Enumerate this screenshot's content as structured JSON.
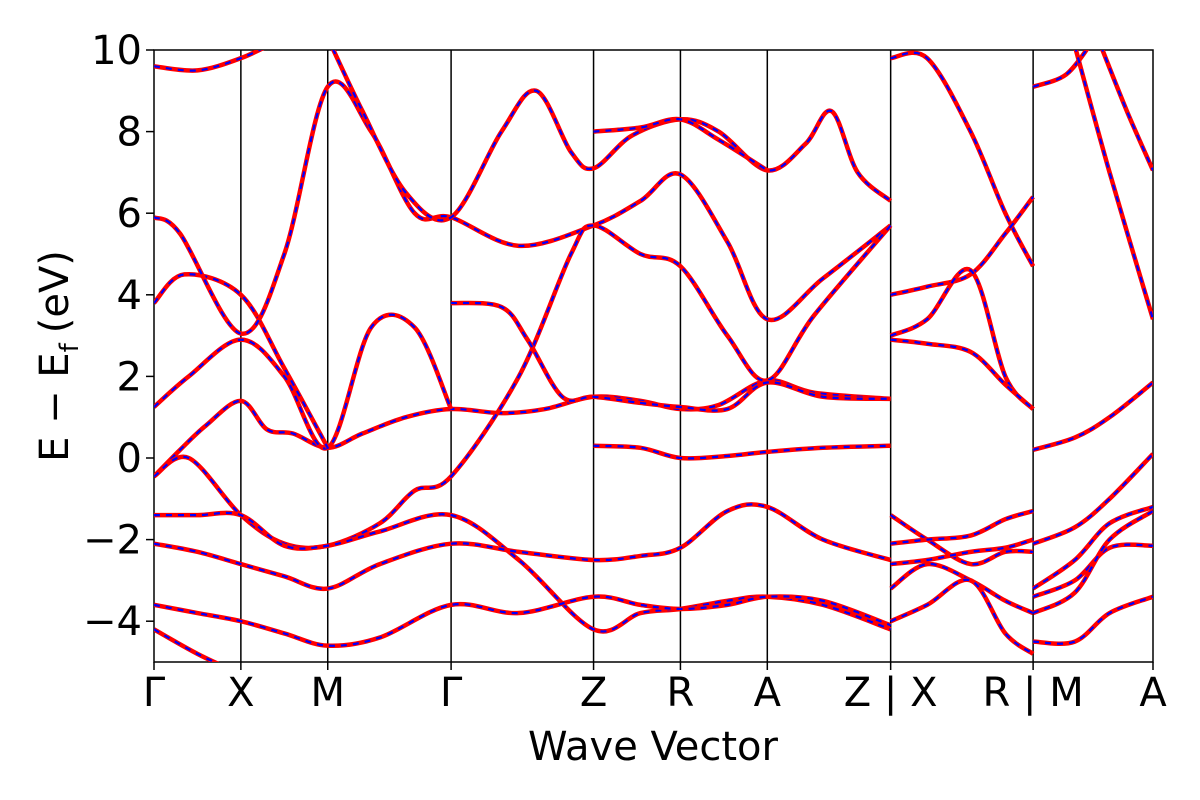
{
  "chart_data": {
    "type": "line",
    "title": "",
    "xlabel": "Wave Vector",
    "ylabel": "E − E",
    "ylabel_subscript": "f",
    "ylabel_unit": "(eV)",
    "ylim": [
      -5,
      10
    ],
    "yticks": [
      {
        "value": -4,
        "label": "−4"
      },
      {
        "value": -2,
        "label": "−2"
      },
      {
        "value": 0,
        "label": "0"
      },
      {
        "value": 2,
        "label": "2"
      },
      {
        "value": 4,
        "label": "4"
      },
      {
        "value": 6,
        "label": "6"
      },
      {
        "value": 8,
        "label": "8"
      },
      {
        "value": 10,
        "label": "10"
      }
    ],
    "xlim": [
      0,
      11.5
    ],
    "kpoints": [
      {
        "x": 0.0,
        "label": "Γ"
      },
      {
        "x": 1.0,
        "label": "X"
      },
      {
        "x": 2.0,
        "label": "M"
      },
      {
        "x": 3.42,
        "label": "Γ"
      },
      {
        "x": 5.06,
        "label": "Z"
      },
      {
        "x": 6.06,
        "label": "R"
      },
      {
        "x": 7.06,
        "label": "A"
      },
      {
        "x": 8.48,
        "label": "Z | X"
      },
      {
        "x": 10.12,
        "label": "R | M"
      },
      {
        "x": 11.5,
        "label": "A"
      }
    ],
    "series_styles": [
      {
        "name": "dashed",
        "color": "#0000ff"
      },
      {
        "name": "solid",
        "color": "#ff0000"
      }
    ],
    "series": [
      {
        "name": "band-a",
        "points": [
          [
            0,
            -0.45
          ],
          [
            0.3,
            0.2
          ],
          [
            0.6,
            0.8
          ],
          [
            1.0,
            1.4
          ],
          [
            1.3,
            0.7
          ],
          [
            1.6,
            0.6
          ],
          [
            2.0,
            0.25
          ],
          [
            2.4,
            0.6
          ],
          [
            2.9,
            1.0
          ],
          [
            3.42,
            1.2
          ],
          [
            4.0,
            1.1
          ],
          [
            4.5,
            1.2
          ],
          [
            5.06,
            1.5
          ],
          [
            5.6,
            1.4
          ],
          [
            6.06,
            1.2
          ],
          [
            6.5,
            1.3
          ],
          [
            7.06,
            1.9
          ],
          [
            7.6,
            1.6
          ],
          [
            8.48,
            1.45
          ]
        ]
      },
      {
        "name": "band-b",
        "points": [
          [
            0,
            1.25
          ],
          [
            0.4,
            2.0
          ],
          [
            1.0,
            2.9
          ],
          [
            1.5,
            2.0
          ],
          [
            2.0,
            0.25
          ],
          [
            2.5,
            3.2
          ],
          [
            3.0,
            3.2
          ],
          [
            3.42,
            1.2
          ]
        ]
      },
      {
        "name": "band-c",
        "points": [
          [
            0,
            3.8
          ],
          [
            0.35,
            4.5
          ],
          [
            1.0,
            4.0
          ],
          [
            1.5,
            2.2
          ],
          [
            2.0,
            0.25
          ]
        ]
      },
      {
        "name": "band-d",
        "points": [
          [
            0,
            5.9
          ],
          [
            0.3,
            5.5
          ],
          [
            1.0,
            3.05
          ],
          [
            1.5,
            5.0
          ],
          [
            2.0,
            9.1
          ],
          [
            2.5,
            8.0
          ],
          [
            3.0,
            6.0
          ],
          [
            3.42,
            5.9
          ],
          [
            4.2,
            5.2
          ],
          [
            5.06,
            5.7
          ],
          [
            5.6,
            6.3
          ],
          [
            6.06,
            6.95
          ],
          [
            6.6,
            5.3
          ],
          [
            7.06,
            3.4
          ],
          [
            7.7,
            4.4
          ],
          [
            8.48,
            5.7
          ]
        ]
      },
      {
        "name": "band-e",
        "points": [
          [
            0,
            9.6
          ],
          [
            0.5,
            9.5
          ],
          [
            1.0,
            9.8
          ],
          [
            1.4,
            10.2
          ]
        ]
      },
      {
        "name": "band-f",
        "points": [
          [
            0,
            -0.45
          ],
          [
            0.4,
            0.0
          ],
          [
            1.0,
            -1.4
          ],
          [
            1.5,
            -2.1
          ],
          [
            2.0,
            -2.15
          ],
          [
            2.6,
            -1.6
          ],
          [
            3.0,
            -0.8
          ],
          [
            3.42,
            -0.45
          ],
          [
            4.2,
            2.0
          ],
          [
            4.8,
            5.0
          ],
          [
            5.06,
            5.7
          ],
          [
            5.6,
            5.0
          ],
          [
            6.06,
            4.7
          ],
          [
            6.6,
            3.0
          ],
          [
            7.06,
            1.9
          ],
          [
            7.6,
            3.5
          ],
          [
            8.48,
            5.7
          ]
        ]
      },
      {
        "name": "band-g",
        "points": [
          [
            0,
            -1.4
          ],
          [
            0.5,
            -1.4
          ],
          [
            1.0,
            -1.4
          ],
          [
            1.5,
            -2.15
          ],
          [
            2.0,
            -2.15
          ],
          [
            2.6,
            -1.8
          ],
          [
            3.42,
            -1.4
          ],
          [
            4.2,
            -2.5
          ],
          [
            5.06,
            -4.2
          ],
          [
            5.6,
            -3.8
          ],
          [
            6.06,
            -3.7
          ],
          [
            6.6,
            -3.5
          ],
          [
            7.06,
            -3.4
          ],
          [
            7.7,
            -3.6
          ],
          [
            8.48,
            -4.2
          ]
        ]
      },
      {
        "name": "band-h",
        "points": [
          [
            0,
            -2.1
          ],
          [
            0.5,
            -2.3
          ],
          [
            1.0,
            -2.6
          ],
          [
            1.5,
            -2.9
          ],
          [
            2.0,
            -3.2
          ],
          [
            2.6,
            -2.6
          ],
          [
            3.42,
            -2.1
          ],
          [
            4.2,
            -2.3
          ],
          [
            5.06,
            -2.5
          ],
          [
            5.6,
            -2.4
          ],
          [
            6.06,
            -2.2
          ],
          [
            6.6,
            -1.3
          ],
          [
            7.06,
            -1.2
          ],
          [
            7.7,
            -2.0
          ],
          [
            8.48,
            -2.5
          ]
        ]
      },
      {
        "name": "band-i",
        "points": [
          [
            0,
            -3.6
          ],
          [
            0.5,
            -3.8
          ],
          [
            1.0,
            -4.0
          ],
          [
            1.5,
            -4.3
          ],
          [
            2.0,
            -4.6
          ],
          [
            2.6,
            -4.4
          ],
          [
            3.42,
            -3.6
          ],
          [
            4.2,
            -3.8
          ],
          [
            5.06,
            -3.4
          ],
          [
            5.6,
            -3.6
          ],
          [
            6.06,
            -3.7
          ],
          [
            6.6,
            -3.6
          ],
          [
            7.06,
            -3.4
          ],
          [
            7.7,
            -3.5
          ],
          [
            8.48,
            -4.1
          ]
        ]
      },
      {
        "name": "band-j",
        "points": [
          [
            0,
            -4.2
          ],
          [
            0.5,
            -4.8
          ],
          [
            1.0,
            -5.3
          ]
        ]
      },
      {
        "name": "band-k",
        "points": [
          [
            2.0,
            10.3
          ],
          [
            2.4,
            8.5
          ],
          [
            2.9,
            6.5
          ],
          [
            3.42,
            5.9
          ],
          [
            4.0,
            8.0
          ],
          [
            4.4,
            9.0
          ],
          [
            4.8,
            7.5
          ],
          [
            5.06,
            7.1
          ],
          [
            5.5,
            7.9
          ],
          [
            6.06,
            8.3
          ],
          [
            6.5,
            8.0
          ],
          [
            7.06,
            7.05
          ],
          [
            7.5,
            7.7
          ],
          [
            7.8,
            8.5
          ],
          [
            8.1,
            7.0
          ],
          [
            8.48,
            6.3
          ]
        ]
      },
      {
        "name": "band-l",
        "points": [
          [
            5.06,
            8.0
          ],
          [
            5.6,
            8.1
          ],
          [
            6.06,
            8.3
          ],
          [
            6.5,
            7.8
          ],
          [
            7.06,
            7.05
          ]
        ]
      },
      {
        "name": "band-m",
        "points": [
          [
            5.06,
            0.3
          ],
          [
            5.6,
            0.25
          ],
          [
            6.06,
            0.0
          ],
          [
            6.6,
            0.05
          ],
          [
            7.06,
            0.15
          ],
          [
            7.7,
            0.25
          ],
          [
            8.48,
            0.3
          ]
        ]
      },
      {
        "name": "band-n",
        "points": [
          [
            3.42,
            3.8
          ],
          [
            4.0,
            3.7
          ],
          [
            4.3,
            2.9
          ],
          [
            4.7,
            1.5
          ],
          [
            5.06,
            1.5
          ],
          [
            5.6,
            1.35
          ],
          [
            6.06,
            1.25
          ],
          [
            6.6,
            1.2
          ],
          [
            7.06,
            1.85
          ],
          [
            7.7,
            1.5
          ],
          [
            8.48,
            1.45
          ]
        ]
      },
      {
        "name": "band-o",
        "points": [
          [
            8.48,
            9.8
          ],
          [
            8.9,
            9.8
          ],
          [
            9.4,
            8.0
          ],
          [
            9.8,
            6.0
          ],
          [
            10.12,
            4.7
          ]
        ]
      },
      {
        "name": "band-p",
        "points": [
          [
            8.48,
            4.0
          ],
          [
            8.9,
            4.2
          ],
          [
            9.4,
            4.5
          ],
          [
            9.8,
            5.5
          ],
          [
            10.12,
            6.4
          ]
        ]
      },
      {
        "name": "band-q",
        "points": [
          [
            8.48,
            3.0
          ],
          [
            8.9,
            3.4
          ],
          [
            9.4,
            4.6
          ],
          [
            9.8,
            2.0
          ],
          [
            10.12,
            1.2
          ]
        ]
      },
      {
        "name": "band-r",
        "points": [
          [
            8.48,
            2.9
          ],
          [
            8.9,
            2.8
          ],
          [
            9.4,
            2.6
          ],
          [
            9.8,
            1.8
          ],
          [
            10.12,
            1.2
          ]
        ]
      },
      {
        "name": "band-s",
        "points": [
          [
            8.48,
            -1.4
          ],
          [
            8.9,
            -2.0
          ],
          [
            9.4,
            -2.6
          ],
          [
            9.8,
            -2.3
          ],
          [
            10.12,
            -2.3
          ]
        ]
      },
      {
        "name": "band-t",
        "points": [
          [
            8.48,
            -2.1
          ],
          [
            8.9,
            -2.0
          ],
          [
            9.4,
            -1.9
          ],
          [
            9.8,
            -1.5
          ],
          [
            10.12,
            -1.3
          ]
        ]
      },
      {
        "name": "band-u",
        "points": [
          [
            8.48,
            -2.6
          ],
          [
            8.9,
            -2.5
          ],
          [
            9.4,
            -2.3
          ],
          [
            9.8,
            -2.2
          ],
          [
            10.12,
            -2.0
          ]
        ]
      },
      {
        "name": "band-v",
        "points": [
          [
            8.48,
            -3.2
          ],
          [
            8.9,
            -2.6
          ],
          [
            9.4,
            -3.0
          ],
          [
            9.8,
            -3.5
          ],
          [
            10.12,
            -3.8
          ]
        ]
      },
      {
        "name": "band-w",
        "points": [
          [
            8.48,
            -4.0
          ],
          [
            8.9,
            -3.6
          ],
          [
            9.4,
            -3.0
          ],
          [
            9.8,
            -4.3
          ],
          [
            10.12,
            -4.8
          ]
        ]
      },
      {
        "name": "band-x",
        "points": [
          [
            10.12,
            9.1
          ],
          [
            10.5,
            9.4
          ],
          [
            10.8,
            10.2
          ]
        ]
      },
      {
        "name": "band-y",
        "points": [
          [
            10.12,
            0.2
          ],
          [
            10.6,
            0.5
          ],
          [
            11.0,
            1.0
          ],
          [
            11.5,
            1.85
          ]
        ]
      },
      {
        "name": "band-z",
        "points": [
          [
            10.12,
            -2.1
          ],
          [
            10.6,
            -1.7
          ],
          [
            11.0,
            -1.0
          ],
          [
            11.5,
            0.1
          ]
        ]
      },
      {
        "name": "band-aa",
        "points": [
          [
            10.12,
            -3.2
          ],
          [
            10.6,
            -2.5
          ],
          [
            11.0,
            -1.6
          ],
          [
            11.5,
            -1.2
          ]
        ]
      },
      {
        "name": "band-ab",
        "points": [
          [
            10.12,
            -3.4
          ],
          [
            10.6,
            -3.0
          ],
          [
            11.0,
            -2.2
          ],
          [
            11.5,
            -2.15
          ]
        ]
      },
      {
        "name": "band-ac",
        "points": [
          [
            10.12,
            -3.8
          ],
          [
            10.6,
            -3.3
          ],
          [
            11.0,
            -2.0
          ],
          [
            11.5,
            -1.3
          ]
        ]
      },
      {
        "name": "band-ad",
        "points": [
          [
            10.12,
            -4.5
          ],
          [
            10.6,
            -4.5
          ],
          [
            11.0,
            -3.8
          ],
          [
            11.5,
            -3.4
          ]
        ]
      },
      {
        "name": "band-ae",
        "points": [
          [
            10.6,
            10.1
          ],
          [
            11.0,
            7.0
          ],
          [
            11.5,
            3.4
          ]
        ]
      },
      {
        "name": "band-af",
        "points": [
          [
            10.9,
            10.1
          ],
          [
            11.2,
            8.5
          ],
          [
            11.5,
            7.05
          ]
        ]
      }
    ]
  }
}
